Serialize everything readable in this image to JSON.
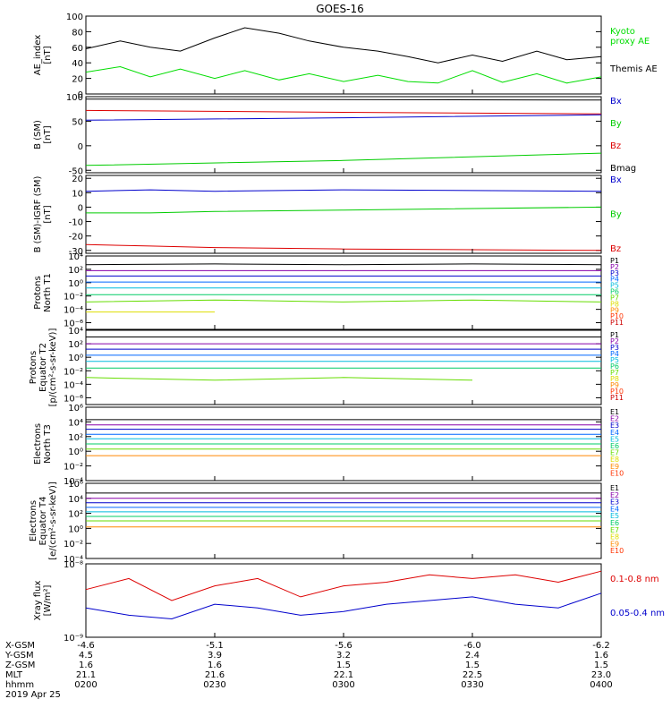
{
  "title": "GOES-16",
  "colors": {
    "black": "#000000",
    "green": "#00cc00",
    "blue": "#0000cc",
    "red": "#dd0000",
    "kyoto": "#00dd00",
    "p1": "#000000",
    "p2": "#8800aa",
    "p3": "#0000cc",
    "p4": "#0066ff",
    "p5": "#00bbdd",
    "p6": "#00cc66",
    "p7": "#66dd00",
    "p8": "#dddd00",
    "p9": "#ff8800",
    "p10": "#ff3300",
    "p11": "#cc0000"
  },
  "bottom_axis": {
    "rows": [
      {
        "label": "X-GSM",
        "values": [
          "-4.6",
          "-5.1",
          "-5.6",
          "-6.0",
          "-6.2"
        ]
      },
      {
        "label": "Y-GSM",
        "values": [
          "4.5",
          "3.9",
          "3.2",
          "2.4",
          "1.6"
        ]
      },
      {
        "label": "Z-GSM",
        "values": [
          "1.6",
          "1.6",
          "1.5",
          "1.5",
          "1.5"
        ]
      },
      {
        "label": "MLT",
        "values": [
          "21.1",
          "21.6",
          "22.1",
          "22.5",
          "23.0"
        ]
      },
      {
        "label": "hhmm",
        "values": [
          "0200",
          "0230",
          "0300",
          "0330",
          "0400"
        ]
      }
    ],
    "date": "2019 Apr 25"
  },
  "chart_data": [
    {
      "id": "ae",
      "type": "line",
      "ylabel": [
        "AE_index",
        "[nT]"
      ],
      "yscale": "linear",
      "ylim": [
        0,
        100
      ],
      "ticks": [
        "0",
        "20",
        "40",
        "60",
        "80",
        "100"
      ],
      "tickvals": [
        0,
        20,
        40,
        60,
        80,
        100
      ],
      "x": [
        0,
        8,
        15,
        22,
        30,
        37,
        45,
        52,
        60,
        68,
        75,
        82,
        90,
        97,
        105,
        112,
        120
      ],
      "series": [
        {
          "name": "Themis AE",
          "color": "black",
          "values": [
            58,
            68,
            60,
            55,
            72,
            85,
            78,
            68,
            60,
            55,
            48,
            40,
            50,
            42,
            55,
            44,
            48
          ]
        },
        {
          "name": "Kyoto proxy AE",
          "color": "kyoto",
          "values": [
            28,
            35,
            22,
            32,
            20,
            30,
            18,
            26,
            16,
            24,
            16,
            14,
            30,
            15,
            26,
            14,
            22
          ]
        }
      ],
      "legend": [
        {
          "text": "Kyoto",
          "color": "kyoto"
        },
        {
          "text": "proxy AE",
          "color": "kyoto"
        },
        {
          "text": "Themis AE",
          "color": "black"
        }
      ]
    },
    {
      "id": "bsm",
      "type": "line",
      "ylabel": [
        "B (SM)",
        "[nT]"
      ],
      "yscale": "linear",
      "ylim": [
        -55,
        100
      ],
      "ticks": [
        "-50",
        "0",
        "50",
        "100"
      ],
      "tickvals": [
        -50,
        0,
        50,
        100
      ],
      "x": [
        0,
        60,
        120
      ],
      "series": [
        {
          "name": "Bmag",
          "color": "black",
          "values": [
            95,
            94,
            93
          ]
        },
        {
          "name": "Bz",
          "color": "red",
          "values": [
            72,
            68,
            65
          ]
        },
        {
          "name": "Bx",
          "color": "blue",
          "values": [
            52,
            57,
            63
          ]
        },
        {
          "name": "By",
          "color": "green",
          "values": [
            -40,
            -30,
            -15
          ]
        }
      ],
      "legend": [
        {
          "text": "Bx",
          "color": "blue"
        },
        {
          "text": "By",
          "color": "green"
        },
        {
          "text": "Bz",
          "color": "red"
        },
        {
          "text": "Bmag",
          "color": "black"
        }
      ]
    },
    {
      "id": "bigrf",
      "type": "line",
      "ylabel": [
        "B (SM)-IGRF (SM)",
        "[nT]"
      ],
      "yscale": "linear",
      "ylim": [
        -32,
        22
      ],
      "ticks": [
        "-30",
        "-20",
        "-10",
        "0",
        "10",
        "20"
      ],
      "tickvals": [
        -30,
        -20,
        -10,
        0,
        10,
        20
      ],
      "x": [
        0,
        15,
        30,
        60,
        120
      ],
      "series": [
        {
          "name": "Bx",
          "color": "blue",
          "values": [
            11,
            12,
            11,
            12,
            11
          ]
        },
        {
          "name": "By",
          "color": "green",
          "values": [
            -4,
            -4,
            -3,
            -2,
            0
          ]
        },
        {
          "name": "Bz",
          "color": "red",
          "values": [
            -26,
            -27,
            -28,
            -29,
            -30
          ]
        }
      ],
      "legend": [
        {
          "text": "Bx",
          "color": "blue"
        },
        {
          "text": "By",
          "color": "green"
        },
        {
          "text": "Bz",
          "color": "red"
        }
      ]
    },
    {
      "id": "pn",
      "type": "line",
      "ylabel": [
        "Protons",
        "North T1"
      ],
      "yscale": "log",
      "ylim": [
        -7,
        4
      ],
      "ticks": [
        "10⁴",
        "10²",
        "10⁰",
        "10⁻²",
        "10⁻⁴",
        "10⁻⁶"
      ],
      "tickvals": [
        4,
        2,
        0,
        -2,
        -4,
        -6
      ],
      "x": [
        0,
        30,
        60,
        90,
        120
      ],
      "series": [
        {
          "name": "P1",
          "color": "p1",
          "values": [
            2.7,
            2.8,
            2.7,
            2.8,
            2.7
          ]
        },
        {
          "name": "P2",
          "color": "p2",
          "values": [
            1.8,
            1.8,
            1.8,
            1.8,
            1.8
          ]
        },
        {
          "name": "P3",
          "color": "p3",
          "values": [
            1.0,
            1.0,
            1.0,
            1.0,
            1.0
          ]
        },
        {
          "name": "P4",
          "color": "p4",
          "values": [
            0.1,
            0.1,
            0.1,
            0.1,
            0.1
          ]
        },
        {
          "name": "P5",
          "color": "p5",
          "values": [
            -0.8,
            -0.8,
            -0.8,
            -0.8,
            -0.8
          ]
        },
        {
          "name": "P6",
          "color": "p6",
          "values": [
            -1.8,
            -1.8,
            -1.8,
            -1.8,
            -1.8
          ]
        },
        {
          "name": "P7",
          "color": "p7",
          "values": [
            -2.9,
            -2.6,
            -2.9,
            -2.6,
            -2.9
          ]
        },
        {
          "name": "P8",
          "color": "p8",
          "values": [
            -4.4,
            -4.4,
            null,
            null,
            null
          ]
        }
      ],
      "legend": [
        "P1",
        "P2",
        "P3",
        "P4",
        "P5",
        "P6",
        "P7",
        "P8",
        "P9",
        "P10",
        "P11"
      ]
    },
    {
      "id": "pe",
      "type": "line",
      "ylabel": [
        "Protons",
        "Equator T2",
        "[p/(cm²-s-sr-keV)]"
      ],
      "yscale": "log",
      "ylim": [
        -7,
        4
      ],
      "ticks": [
        "10⁴",
        "10²",
        "10⁰",
        "10⁻²",
        "10⁻⁴",
        "10⁻⁶"
      ],
      "tickvals": [
        4,
        2,
        0,
        -2,
        -4,
        -6
      ],
      "x": [
        0,
        30,
        60,
        90,
        120
      ],
      "series": [
        {
          "name": "P1",
          "color": "p1",
          "values": [
            3.0,
            3.0,
            3.0,
            3.0,
            3.0
          ]
        },
        {
          "name": "P2",
          "color": "p2",
          "values": [
            2.0,
            2.0,
            2.0,
            2.0,
            2.0
          ]
        },
        {
          "name": "P3",
          "color": "p3",
          "values": [
            1.2,
            1.2,
            1.2,
            1.2,
            1.2
          ]
        },
        {
          "name": "P4",
          "color": "p4",
          "values": [
            0.3,
            0.3,
            0.3,
            0.3,
            0.3
          ]
        },
        {
          "name": "P5",
          "color": "p5",
          "values": [
            -0.6,
            -0.6,
            -0.6,
            -0.6,
            -0.6
          ]
        },
        {
          "name": "P6",
          "color": "p6",
          "values": [
            -1.6,
            -1.6,
            -1.6,
            -1.6,
            -1.6
          ]
        },
        {
          "name": "P7",
          "color": "p7",
          "values": [
            -3.0,
            -3.4,
            -3.0,
            -3.4,
            null
          ]
        }
      ],
      "legend": [
        "P1",
        "P2",
        "P3",
        "P4",
        "P5",
        "P6",
        "P7",
        "P8",
        "P9",
        "P10",
        "P11"
      ]
    },
    {
      "id": "en",
      "type": "line",
      "ylabel": [
        "Electrons",
        "North T3"
      ],
      "yscale": "log",
      "ylim": [
        -4,
        6
      ],
      "ticks": [
        "10⁶",
        "10⁴",
        "10²",
        "10⁰",
        "10⁻²",
        "10⁻⁴"
      ],
      "tickvals": [
        6,
        4,
        2,
        0,
        -2,
        -4
      ],
      "x": [
        0,
        30,
        60,
        90,
        120
      ],
      "series": [
        {
          "name": "E1",
          "color": "p1",
          "values": [
            4.3,
            4.3,
            4.3,
            4.3,
            4.3
          ]
        },
        {
          "name": "E2",
          "color": "p2",
          "values": [
            3.6,
            3.6,
            3.6,
            3.6,
            3.6
          ]
        },
        {
          "name": "E3",
          "color": "p3",
          "values": [
            3.0,
            3.0,
            3.0,
            3.0,
            3.0
          ]
        },
        {
          "name": "E4",
          "color": "p4",
          "values": [
            2.3,
            2.3,
            2.3,
            2.3,
            2.3
          ]
        },
        {
          "name": "E5",
          "color": "p5",
          "values": [
            1.7,
            1.7,
            1.7,
            1.7,
            1.7
          ]
        },
        {
          "name": "E6",
          "color": "p6",
          "values": [
            1.0,
            1.0,
            1.0,
            1.0,
            1.0
          ]
        },
        {
          "name": "E7",
          "color": "p7",
          "values": [
            0.3,
            0.3,
            0.3,
            0.3,
            0.3
          ]
        },
        {
          "name": "E8",
          "color": "p9",
          "values": [
            -0.6,
            -0.6,
            -0.6,
            -0.6,
            -0.6
          ]
        }
      ],
      "legend": [
        "E1",
        "E2",
        "E3",
        "E4",
        "E5",
        "E6",
        "E7",
        "E8",
        "E9",
        "E10"
      ]
    },
    {
      "id": "ee",
      "type": "line",
      "ylabel": [
        "Electrons",
        "Equator T4",
        "[e/(cm²-s-sr-keV)]"
      ],
      "yscale": "log",
      "ylim": [
        -4,
        6
      ],
      "ticks": [
        "10⁶",
        "10⁴",
        "10²",
        "10⁰",
        "10⁻²",
        "10⁻⁴"
      ],
      "tickvals": [
        6,
        4,
        2,
        0,
        -2,
        -4
      ],
      "x": [
        0,
        30,
        60,
        90,
        120
      ],
      "series": [
        {
          "name": "E1",
          "color": "p1",
          "values": [
            4.7,
            4.7,
            4.7,
            4.7,
            4.7
          ]
        },
        {
          "name": "E2",
          "color": "p2",
          "values": [
            4.0,
            4.0,
            4.0,
            4.0,
            4.0
          ]
        },
        {
          "name": "E3",
          "color": "p3",
          "values": [
            3.4,
            3.4,
            3.4,
            3.4,
            3.4
          ]
        },
        {
          "name": "E4",
          "color": "p4",
          "values": [
            2.8,
            2.8,
            2.8,
            2.8,
            2.8
          ]
        },
        {
          "name": "E5",
          "color": "p5",
          "values": [
            2.2,
            2.2,
            2.2,
            2.2,
            2.2
          ]
        },
        {
          "name": "E6",
          "color": "p6",
          "values": [
            1.6,
            1.6,
            1.6,
            1.6,
            1.6
          ]
        },
        {
          "name": "E7",
          "color": "p7",
          "values": [
            1.0,
            1.0,
            1.0,
            1.0,
            1.0
          ]
        },
        {
          "name": "E8",
          "color": "p9",
          "values": [
            0.2,
            0.2,
            0.2,
            0.2,
            0.2
          ]
        }
      ],
      "legend": [
        "E1",
        "E2",
        "E3",
        "E4",
        "E5",
        "E6",
        "E7",
        "E8",
        "E9",
        "E10"
      ]
    },
    {
      "id": "xray",
      "type": "line",
      "ylabel": [
        "Xray flux",
        "[W/m²]"
      ],
      "yscale": "log",
      "ylim": [
        -9,
        -8
      ],
      "ticks": [
        "10⁻⁸",
        "10⁻⁹"
      ],
      "tickvals": [
        -8,
        -9
      ],
      "x": [
        0,
        10,
        20,
        30,
        40,
        50,
        60,
        70,
        80,
        90,
        100,
        110,
        120
      ],
      "series": [
        {
          "name": "0.1-0.8 nm",
          "color": "red",
          "values": [
            -8.35,
            -8.2,
            -8.5,
            -8.3,
            -8.2,
            -8.45,
            -8.3,
            -8.25,
            -8.15,
            -8.2,
            -8.15,
            -8.25,
            -8.1
          ]
        },
        {
          "name": "0.05-0.4 nm",
          "color": "blue",
          "values": [
            -8.6,
            -8.7,
            -8.75,
            -8.55,
            -8.6,
            -8.7,
            -8.65,
            -8.55,
            -8.5,
            -8.45,
            -8.55,
            -8.6,
            -8.4
          ]
        }
      ],
      "legend": [
        {
          "text": "0.1-0.8 nm",
          "color": "red"
        },
        {
          "text": "0.05-0.4 nm",
          "color": "blue"
        }
      ]
    }
  ]
}
